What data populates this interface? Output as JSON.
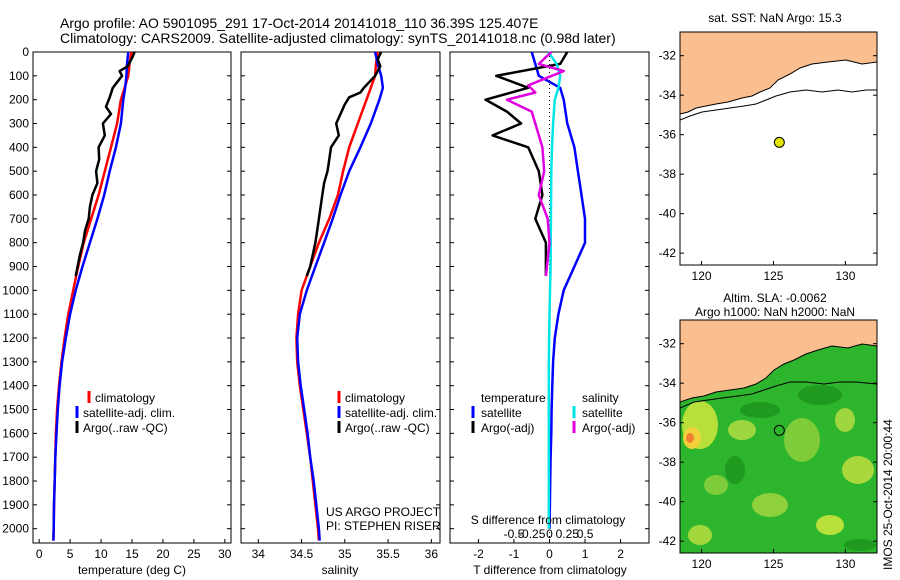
{
  "header": {
    "line1": "Argo profile: AO 5901095_291 17-Oct-2014 20141018_110 36.39S 125.407E",
    "line2": "Climatology: CARS2009. Satellite-adjusted climatology: synTS_20141018.nc (0.98d later)"
  },
  "colors": {
    "climatology": "#ff0000",
    "satellite": "#0000ff",
    "argo": "#000000",
    "satellite_s": "#00e5e5",
    "argo_s": "#e000e0",
    "land": "#fbbf8f",
    "buoy": "#e4e400"
  },
  "labels": {
    "depth_ticks": [
      "0",
      "100",
      "200",
      "300",
      "400",
      "500",
      "600",
      "700",
      "800",
      "900",
      "1000",
      "1100",
      "1200",
      "1300",
      "1400",
      "1500",
      "1600",
      "1700",
      "1800",
      "1900",
      "2000"
    ],
    "legend_t": [
      "climatology",
      "satellite-adj. clim.",
      "Argo(..raw -QC)"
    ],
    "legend_s": [
      "climatology",
      "satellite-adj. clim.",
      "Argo(..raw -QC)"
    ],
    "project1": "US ARGO PROJECT",
    "project2": "PI: STEPHEN RISER",
    "diff_head_t": "temperature",
    "diff_head_s": "salinity",
    "diff_sat_t": "satellite",
    "diff_argo_t": "Argo(-adj)",
    "diff_sat_s": "satellite",
    "diff_argo_s": "Argo(-adj)",
    "s_diff_title": "S difference from climatology",
    "s_diff_ticks": [
      "-0.5",
      "-0.25",
      "0",
      "0.25",
      "0.5"
    ],
    "map1_title": "sat. SST: NaN Argo: 15.3",
    "map2_title1": "Altim. SLA: -0.0062",
    "map2_title2": "Argo h1000: NaN h2000: NaN",
    "side_text": "IMOS 25-Oct-2014 20:00:44",
    "lat_ticks": [
      "-32",
      "-34",
      "-36",
      "-38",
      "-40",
      "-42"
    ],
    "lon_ticks": [
      "120",
      "125",
      "130"
    ]
  },
  "chart_data": [
    {
      "type": "line",
      "xlabel": "temperature (deg C)",
      "ylabel": "",
      "xlim": [
        -1,
        31
      ],
      "ylim": [
        2060,
        0
      ],
      "xticks": [
        "0",
        "5",
        "10",
        "15",
        "20",
        "25",
        "30"
      ],
      "series": [
        {
          "name": "climatology",
          "points": [
            [
              14.9,
              0
            ],
            [
              14.6,
              50
            ],
            [
              14.4,
              100
            ],
            [
              13.8,
              150
            ],
            [
              13.2,
              200
            ],
            [
              12.6,
              300
            ],
            [
              11.6,
              400
            ],
            [
              10.6,
              500
            ],
            [
              9.6,
              600
            ],
            [
              8.4,
              700
            ],
            [
              7.2,
              800
            ],
            [
              6.3,
              900
            ],
            [
              5.5,
              1000
            ],
            [
              4.7,
              1100
            ],
            [
              4.1,
              1200
            ],
            [
              3.6,
              1300
            ],
            [
              3.2,
              1400
            ],
            [
              2.9,
              1500
            ],
            [
              2.7,
              1600
            ],
            [
              2.6,
              1700
            ],
            [
              2.5,
              1800
            ],
            [
              2.4,
              1900
            ],
            [
              2.35,
              2000
            ],
            [
              2.3,
              2050
            ]
          ]
        },
        {
          "name": "satellite-adj. clim.",
          "points": [
            [
              14.4,
              0
            ],
            [
              14.2,
              50
            ],
            [
              14.1,
              100
            ],
            [
              13.9,
              150
            ],
            [
              13.6,
              200
            ],
            [
              13.2,
              300
            ],
            [
              12.4,
              400
            ],
            [
              11.4,
              500
            ],
            [
              10.5,
              600
            ],
            [
              9.4,
              700
            ],
            [
              8.2,
              800
            ],
            [
              7.0,
              900
            ],
            [
              5.9,
              1000
            ],
            [
              5.0,
              1100
            ],
            [
              4.3,
              1200
            ],
            [
              3.7,
              1300
            ],
            [
              3.3,
              1400
            ],
            [
              3.0,
              1500
            ],
            [
              2.8,
              1600
            ],
            [
              2.6,
              1700
            ],
            [
              2.5,
              1800
            ],
            [
              2.4,
              1900
            ],
            [
              2.35,
              2000
            ],
            [
              2.3,
              2050
            ]
          ]
        },
        {
          "name": "Argo(..raw -QC)",
          "points": [
            [
              15.4,
              0
            ],
            [
              15.1,
              20
            ],
            [
              14.3,
              60
            ],
            [
              13.0,
              80
            ],
            [
              13.4,
              100
            ],
            [
              11.9,
              150
            ],
            [
              11.4,
              190
            ],
            [
              10.8,
              230
            ],
            [
              11.6,
              260
            ],
            [
              10.3,
              300
            ],
            [
              10.6,
              350
            ],
            [
              9.6,
              400
            ],
            [
              9.7,
              450
            ],
            [
              9.2,
              500
            ],
            [
              9.4,
              550
            ],
            [
              8.6,
              600
            ],
            [
              8.2,
              650
            ],
            [
              8.0,
              700
            ],
            [
              7.4,
              750
            ],
            [
              7.1,
              800
            ],
            [
              6.6,
              850
            ],
            [
              6.2,
              900
            ],
            [
              5.9,
              940
            ]
          ]
        }
      ]
    },
    {
      "type": "line",
      "xlabel": "salinity",
      "ylabel": "",
      "xlim": [
        33.8,
        36.1
      ],
      "ylim": [
        2060,
        0
      ],
      "xticks": [
        "34",
        "34.5",
        "35",
        "35.5",
        "36"
      ],
      "series": [
        {
          "name": "climatology",
          "points": [
            [
              35.38,
              0
            ],
            [
              35.36,
              50
            ],
            [
              35.35,
              100
            ],
            [
              35.3,
              150
            ],
            [
              35.25,
              200
            ],
            [
              35.15,
              300
            ],
            [
              35.05,
              400
            ],
            [
              34.98,
              500
            ],
            [
              34.92,
              600
            ],
            [
              34.82,
              700
            ],
            [
              34.7,
              800
            ],
            [
              34.6,
              900
            ],
            [
              34.5,
              1000
            ],
            [
              34.46,
              1100
            ],
            [
              34.44,
              1200
            ],
            [
              34.45,
              1300
            ],
            [
              34.48,
              1400
            ],
            [
              34.52,
              1500
            ],
            [
              34.56,
              1600
            ],
            [
              34.6,
              1700
            ],
            [
              34.63,
              1800
            ],
            [
              34.66,
              1900
            ],
            [
              34.69,
              2000
            ],
            [
              34.7,
              2050
            ]
          ]
        },
        {
          "name": "satellite-adj. clim.",
          "points": [
            [
              35.35,
              0
            ],
            [
              35.38,
              50
            ],
            [
              35.42,
              100
            ],
            [
              35.44,
              150
            ],
            [
              35.4,
              200
            ],
            [
              35.3,
              300
            ],
            [
              35.18,
              400
            ],
            [
              35.05,
              500
            ],
            [
              34.95,
              600
            ],
            [
              34.86,
              700
            ],
            [
              34.76,
              800
            ],
            [
              34.66,
              900
            ],
            [
              34.56,
              1000
            ],
            [
              34.48,
              1100
            ],
            [
              34.45,
              1200
            ],
            [
              34.46,
              1300
            ],
            [
              34.49,
              1400
            ],
            [
              34.53,
              1500
            ],
            [
              34.57,
              1600
            ],
            [
              34.6,
              1700
            ],
            [
              34.64,
              1800
            ],
            [
              34.67,
              1900
            ],
            [
              34.7,
              2000
            ],
            [
              34.71,
              2050
            ]
          ]
        },
        {
          "name": "Argo(..raw -QC)",
          "points": [
            [
              35.42,
              0
            ],
            [
              35.38,
              30
            ],
            [
              35.41,
              60
            ],
            [
              35.35,
              100
            ],
            [
              35.22,
              150
            ],
            [
              35.18,
              170
            ],
            [
              35.05,
              190
            ],
            [
              35.0,
              220
            ],
            [
              34.95,
              260
            ],
            [
              34.9,
              300
            ],
            [
              34.93,
              350
            ],
            [
              34.84,
              400
            ],
            [
              34.82,
              450
            ],
            [
              34.8,
              500
            ],
            [
              34.76,
              550
            ],
            [
              34.74,
              600
            ],
            [
              34.7,
              700
            ],
            [
              34.66,
              800
            ],
            [
              34.6,
              900
            ],
            [
              34.56,
              940
            ]
          ]
        }
      ]
    },
    {
      "type": "line",
      "xlabel": "T difference from climatology",
      "ylabel": "",
      "xlim": [
        -2.8,
        2.8
      ],
      "ylim": [
        2060,
        0
      ],
      "xticks": [
        "-2",
        "-1",
        "0",
        "1",
        "2"
      ],
      "series": [
        {
          "name": "temperature satellite",
          "points": [
            [
              -0.5,
              0
            ],
            [
              -0.4,
              50
            ],
            [
              -0.3,
              100
            ],
            [
              0.3,
              150
            ],
            [
              0.4,
              200
            ],
            [
              0.5,
              300
            ],
            [
              0.7,
              400
            ],
            [
              0.8,
              500
            ],
            [
              0.9,
              600
            ],
            [
              1.0,
              700
            ],
            [
              1.0,
              800
            ],
            [
              0.7,
              900
            ],
            [
              0.4,
              1000
            ],
            [
              0.25,
              1100
            ],
            [
              0.15,
              1200
            ],
            [
              0.1,
              1300
            ],
            [
              0.08,
              1400
            ],
            [
              0.06,
              1500
            ],
            [
              0.05,
              1600
            ],
            [
              0.03,
              1700
            ],
            [
              0.02,
              1800
            ],
            [
              0.01,
              1900
            ],
            [
              0.0,
              2000
            ]
          ]
        },
        {
          "name": "temperature Argo(-adj)",
          "points": [
            [
              0.5,
              0
            ],
            [
              0.3,
              50
            ],
            [
              -1.5,
              100
            ],
            [
              -0.6,
              150
            ],
            [
              -1.8,
              200
            ],
            [
              -1.2,
              250
            ],
            [
              -0.8,
              300
            ],
            [
              -1.6,
              350
            ],
            [
              -0.6,
              400
            ],
            [
              -0.3,
              500
            ],
            [
              -0.2,
              600
            ],
            [
              -0.4,
              700
            ],
            [
              -0.1,
              800
            ],
            [
              -0.1,
              940
            ]
          ]
        },
        {
          "name": "salinity satellite",
          "points": [
            [
              -0.03,
              0
            ],
            [
              0.2,
              50
            ],
            [
              0.3,
              100
            ],
            [
              0.25,
              150
            ],
            [
              0.15,
              200
            ],
            [
              0.1,
              300
            ],
            [
              0.07,
              400
            ],
            [
              0.05,
              500
            ],
            [
              0.04,
              700
            ],
            [
              0.03,
              900
            ],
            [
              0.0,
              1100
            ],
            [
              -0.02,
              1300
            ],
            [
              -0.02,
              1600
            ],
            [
              -0.02,
              2000
            ]
          ]
        },
        {
          "name": "salinity Argo(-adj)",
          "points": [
            [
              0.05,
              0
            ],
            [
              -0.3,
              50
            ],
            [
              0.4,
              80
            ],
            [
              -0.1,
              110
            ],
            [
              -0.6,
              140
            ],
            [
              -0.4,
              170
            ],
            [
              -1.2,
              200
            ],
            [
              -0.5,
              250
            ],
            [
              -0.4,
              300
            ],
            [
              -0.2,
              400
            ],
            [
              -0.15,
              500
            ],
            [
              -0.3,
              600
            ],
            [
              -0.05,
              700
            ],
            [
              0.0,
              800
            ],
            [
              -0.1,
              940
            ]
          ]
        }
      ]
    },
    {
      "type": "heatmap",
      "title": "sat. SST: NaN Argo: 15.3",
      "xlim": [
        118.5,
        132.2
      ],
      "ylim": [
        -42.6,
        -30.8
      ],
      "argo_position": [
        125.407,
        -36.39
      ]
    },
    {
      "type": "heatmap",
      "title": "Altim. SLA: -0.0062",
      "xlim": [
        118.5,
        132.2
      ],
      "ylim": [
        -42.6,
        -30.8
      ],
      "argo_position": [
        125.407,
        -36.39
      ]
    }
  ]
}
